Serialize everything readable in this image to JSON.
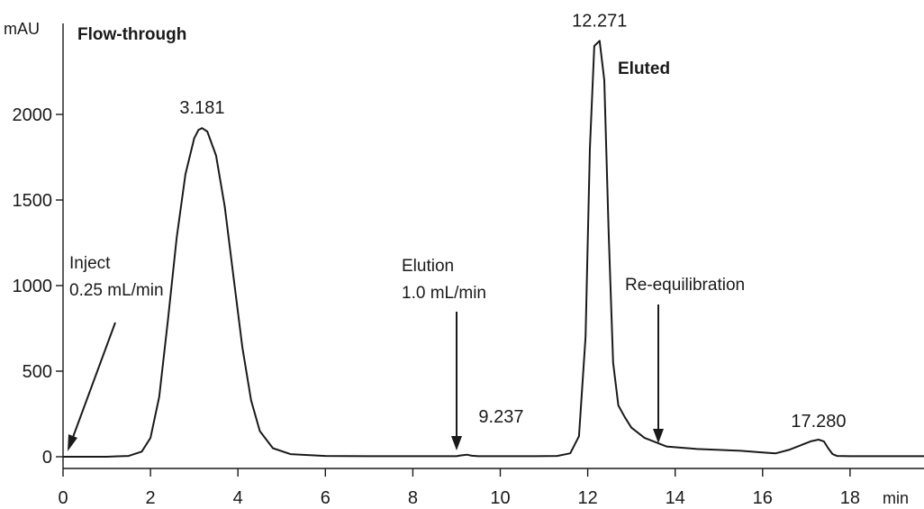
{
  "chart_data": {
    "type": "line",
    "x_unit": "min",
    "y_unit": "mAU",
    "xlim": [
      0,
      19.8
    ],
    "ylim": [
      -60,
      2580
    ],
    "x_ticks": [
      0,
      2,
      4,
      6,
      8,
      10,
      12,
      14,
      16,
      18
    ],
    "y_ticks": [
      0,
      500,
      1000,
      1500,
      2000
    ],
    "series": [
      {
        "x": [
          0,
          0.5,
          1.0,
          1.5,
          1.8,
          2.0,
          2.2,
          2.4,
          2.6,
          2.8,
          3.0,
          3.1,
          3.181,
          3.3,
          3.5,
          3.7,
          3.9,
          4.1,
          4.3,
          4.5,
          4.8,
          5.2,
          6.0,
          7.0,
          8.0,
          8.8,
          9.0,
          9.1,
          9.237,
          9.35,
          9.5,
          10.0,
          10.8,
          11.3,
          11.6,
          11.8,
          11.95,
          12.05,
          12.15,
          12.271,
          12.38,
          12.48,
          12.58,
          12.7,
          12.85,
          13.0,
          13.3,
          13.8,
          14.5,
          15.0,
          15.5,
          16.0,
          16.3,
          16.6,
          16.9,
          17.1,
          17.28,
          17.4,
          17.5,
          17.6,
          17.7,
          18.0,
          19.0,
          19.8
        ],
        "y": [
          0,
          0,
          0,
          5,
          30,
          110,
          350,
          800,
          1280,
          1650,
          1860,
          1910,
          1920,
          1900,
          1760,
          1460,
          1050,
          640,
          330,
          150,
          50,
          15,
          5,
          3,
          3,
          3,
          3,
          8,
          12,
          6,
          3,
          3,
          3,
          5,
          20,
          120,
          700,
          1800,
          2400,
          2430,
          2200,
          1300,
          550,
          300,
          230,
          170,
          110,
          60,
          45,
          40,
          35,
          25,
          20,
          40,
          70,
          90,
          100,
          90,
          50,
          15,
          5,
          3,
          3,
          3
        ]
      }
    ],
    "peak_labels": [
      {
        "x": 3.181,
        "y": 1920,
        "label": "3.181"
      },
      {
        "x": 9.237,
        "y": 12,
        "label": "9.237"
      },
      {
        "x": 12.271,
        "y": 2430,
        "label": "12.271"
      },
      {
        "x": 17.28,
        "y": 100,
        "label": "17.280"
      }
    ],
    "annotations": {
      "flow_through": "Flow-through",
      "eluted": "Eluted",
      "inject_line1": "Inject",
      "inject_line2": "0.25 mL/min",
      "elution_line1": "Elution",
      "elution_line2": "1.0 mL/min",
      "reequilibration": "Re-equilibration"
    }
  }
}
